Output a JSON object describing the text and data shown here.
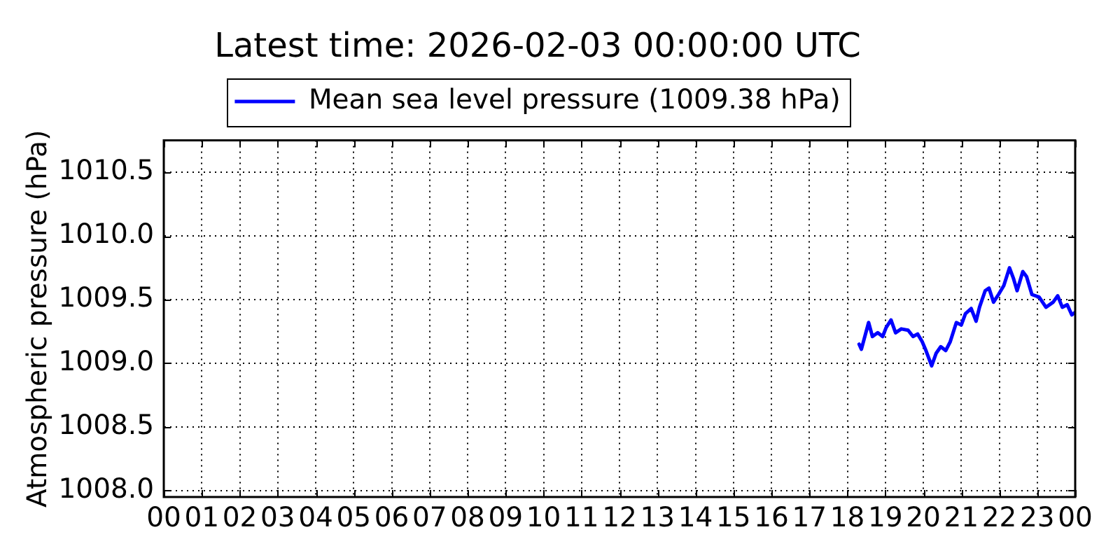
{
  "chart_data": {
    "type": "line",
    "title": "Latest time: 2026-02-03 00:00:00 UTC",
    "ylabel": "Atmospheric pressure (hPa)",
    "x": [
      18.31,
      18.37,
      18.56,
      18.66,
      18.8,
      18.93,
      19.02,
      19.15,
      19.27,
      19.42,
      19.6,
      19.73,
      19.85,
      19.97,
      20.07,
      20.22,
      20.34,
      20.46,
      20.59,
      20.71,
      20.87,
      21.0,
      21.11,
      21.26,
      21.39,
      21.48,
      21.63,
      21.73,
      21.85,
      21.98,
      22.12,
      22.27,
      22.37,
      22.47,
      22.62,
      22.72,
      22.86,
      23.05,
      23.23,
      23.42,
      23.54,
      23.66,
      23.79,
      23.91,
      24.0
    ],
    "series": [
      {
        "name": "Mean sea level pressure (1009.38 hPa)",
        "color": "#0000ff",
        "values": [
          1009.15,
          1009.11,
          1009.32,
          1009.21,
          1009.24,
          1009.21,
          1009.28,
          1009.34,
          1009.24,
          1009.27,
          1009.26,
          1009.21,
          1009.23,
          1009.17,
          1009.1,
          1008.98,
          1009.08,
          1009.13,
          1009.1,
          1009.17,
          1009.32,
          1009.3,
          1009.39,
          1009.43,
          1009.33,
          1009.44,
          1009.57,
          1009.59,
          1009.48,
          1009.54,
          1009.61,
          1009.75,
          1009.67,
          1009.57,
          1009.72,
          1009.68,
          1009.54,
          1009.52,
          1009.44,
          1009.48,
          1009.53,
          1009.44,
          1009.46,
          1009.38,
          1009.4
        ]
      }
    ],
    "xlim": [
      0,
      24
    ],
    "xticks": [
      {
        "value": 0,
        "label": "00"
      },
      {
        "value": 1,
        "label": "01"
      },
      {
        "value": 2,
        "label": "02"
      },
      {
        "value": 3,
        "label": "03"
      },
      {
        "value": 4,
        "label": "04"
      },
      {
        "value": 5,
        "label": "05"
      },
      {
        "value": 6,
        "label": "06"
      },
      {
        "value": 7,
        "label": "07"
      },
      {
        "value": 8,
        "label": "08"
      },
      {
        "value": 9,
        "label": "09"
      },
      {
        "value": 10,
        "label": "10"
      },
      {
        "value": 11,
        "label": "11"
      },
      {
        "value": 12,
        "label": "12"
      },
      {
        "value": 13,
        "label": "13"
      },
      {
        "value": 14,
        "label": "14"
      },
      {
        "value": 15,
        "label": "15"
      },
      {
        "value": 16,
        "label": "16"
      },
      {
        "value": 17,
        "label": "17"
      },
      {
        "value": 18,
        "label": "18"
      },
      {
        "value": 19,
        "label": "19"
      },
      {
        "value": 20,
        "label": "20"
      },
      {
        "value": 21,
        "label": "21"
      },
      {
        "value": 22,
        "label": "22"
      },
      {
        "value": 23,
        "label": "23"
      },
      {
        "value": 24,
        "label": "00"
      }
    ],
    "ylim": [
      1007.95,
      1010.75
    ],
    "yticks": [
      {
        "value": 1008,
        "label": "1008.0"
      },
      {
        "value": 1008.5,
        "label": "1008.5"
      },
      {
        "value": 1009,
        "label": "1009.0"
      },
      {
        "value": 1009.5,
        "label": "1009.5"
      },
      {
        "value": 1010,
        "label": "1010.0"
      },
      {
        "value": 1010.5,
        "label": "1010.5"
      }
    ],
    "grid": true,
    "legend": "top",
    "marker": "none",
    "line_style": "solid"
  }
}
